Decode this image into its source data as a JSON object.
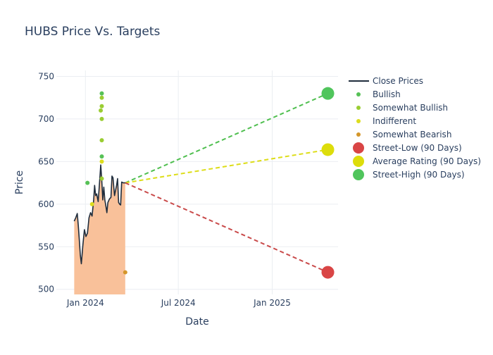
{
  "chart_data": {
    "type": "line",
    "title": "HUBS Price Vs. Targets",
    "xlabel": "Date",
    "ylabel": "Price",
    "x_range": [
      "2023-11-05",
      "2025-05-10"
    ],
    "ylim": [
      494,
      757
    ],
    "y_ticks": [
      500,
      550,
      600,
      650,
      700,
      750
    ],
    "x_ticks": [
      {
        "date": "2024-01-01",
        "label": "Jan 2024"
      },
      {
        "date": "2024-07-01",
        "label": "Jul 2024"
      },
      {
        "date": "2025-01-01",
        "label": "Jan 2025"
      }
    ],
    "grid": true,
    "legend_position": "top-right",
    "colors": {
      "close": "#1f2d3d",
      "fill": "#f9c19a",
      "bullish": "#56c156",
      "somewhat_bullish": "#9acd32",
      "indifferent": "#dddd1e",
      "somewhat_bearish": "#d4962a",
      "street_low": "#d94545",
      "average": "#dddd0b",
      "street_high": "#50c55c",
      "line_low": "#c94a4a",
      "line_avg": "#dddd18",
      "line_high": "#4fbf4f"
    },
    "legend": [
      {
        "label": "Close Prices",
        "kind": "line",
        "color_key": "close"
      },
      {
        "label": "Bullish",
        "kind": "dot",
        "color_key": "bullish"
      },
      {
        "label": "Somewhat Bullish",
        "kind": "dot",
        "color_key": "somewhat_bullish"
      },
      {
        "label": "Indifferent",
        "kind": "dot",
        "color_key": "indifferent"
      },
      {
        "label": "Somewhat Bearish",
        "kind": "dot",
        "color_key": "somewhat_bearish"
      },
      {
        "label": "Street-Low (90 Days)",
        "kind": "big",
        "color_key": "street_low"
      },
      {
        "label": "Average Rating (90 Days)",
        "kind": "big",
        "color_key": "average"
      },
      {
        "label": "Street-High (90 Days)",
        "kind": "big",
        "color_key": "street_high"
      }
    ],
    "close_prices": [
      [
        "2023-12-10",
        580
      ],
      [
        "2023-12-13",
        584
      ],
      [
        "2023-12-16",
        589
      ],
      [
        "2023-12-18",
        575
      ],
      [
        "2023-12-20",
        558
      ],
      [
        "2023-12-22",
        540
      ],
      [
        "2023-12-24",
        530
      ],
      [
        "2023-12-27",
        552
      ],
      [
        "2023-12-30",
        570
      ],
      [
        "2024-01-02",
        562
      ],
      [
        "2024-01-05",
        566
      ],
      [
        "2024-01-08",
        584
      ],
      [
        "2024-01-11",
        590
      ],
      [
        "2024-01-14",
        586
      ],
      [
        "2024-01-17",
        604
      ],
      [
        "2024-01-19",
        622
      ],
      [
        "2024-01-21",
        610
      ],
      [
        "2024-01-23",
        612
      ],
      [
        "2024-01-26",
        603
      ],
      [
        "2024-01-28",
        620
      ],
      [
        "2024-01-31",
        646
      ],
      [
        "2024-02-02",
        628
      ],
      [
        "2024-02-04",
        605
      ],
      [
        "2024-02-06",
        620
      ],
      [
        "2024-02-08",
        605
      ],
      [
        "2024-02-10",
        598
      ],
      [
        "2024-02-12",
        590
      ],
      [
        "2024-02-14",
        602
      ],
      [
        "2024-02-17",
        606
      ],
      [
        "2024-02-20",
        608
      ],
      [
        "2024-02-22",
        633
      ],
      [
        "2024-02-24",
        631
      ],
      [
        "2024-02-27",
        610
      ],
      [
        "2024-03-02",
        622
      ],
      [
        "2024-03-04",
        630
      ],
      [
        "2024-03-06",
        602
      ],
      [
        "2024-03-08",
        600
      ],
      [
        "2024-03-10",
        599
      ],
      [
        "2024-03-12",
        626
      ],
      [
        "2024-03-15",
        625
      ],
      [
        "2024-03-19",
        625
      ]
    ],
    "analyst_ratings": [
      {
        "date": "2024-02-02",
        "price": 730,
        "rating": "Bullish"
      },
      {
        "date": "2024-02-02",
        "price": 725,
        "rating": "Somewhat Bullish"
      },
      {
        "date": "2024-02-02",
        "price": 715,
        "rating": "Somewhat Bullish"
      },
      {
        "date": "2024-01-31",
        "price": 710,
        "rating": "Somewhat Bullish"
      },
      {
        "date": "2024-02-02",
        "price": 700,
        "rating": "Somewhat Bullish"
      },
      {
        "date": "2024-02-02",
        "price": 675,
        "rating": "Somewhat Bullish"
      },
      {
        "date": "2024-02-02",
        "price": 656,
        "rating": "Bullish"
      },
      {
        "date": "2024-02-02",
        "price": 650,
        "rating": "Indifferent"
      },
      {
        "date": "2024-02-02",
        "price": 630,
        "rating": "Somewhat Bullish"
      },
      {
        "date": "2024-01-05",
        "price": 625,
        "rating": "Bullish"
      },
      {
        "date": "2024-01-14",
        "price": 600,
        "rating": "Indifferent"
      },
      {
        "date": "2024-03-19",
        "price": 520,
        "rating": "Somewhat Bearish"
      }
    ],
    "targets": {
      "start_date": "2024-03-19",
      "start_price": 625,
      "end_date": "2025-04-20",
      "street_low": 520,
      "average": 664,
      "street_high": 730
    }
  }
}
